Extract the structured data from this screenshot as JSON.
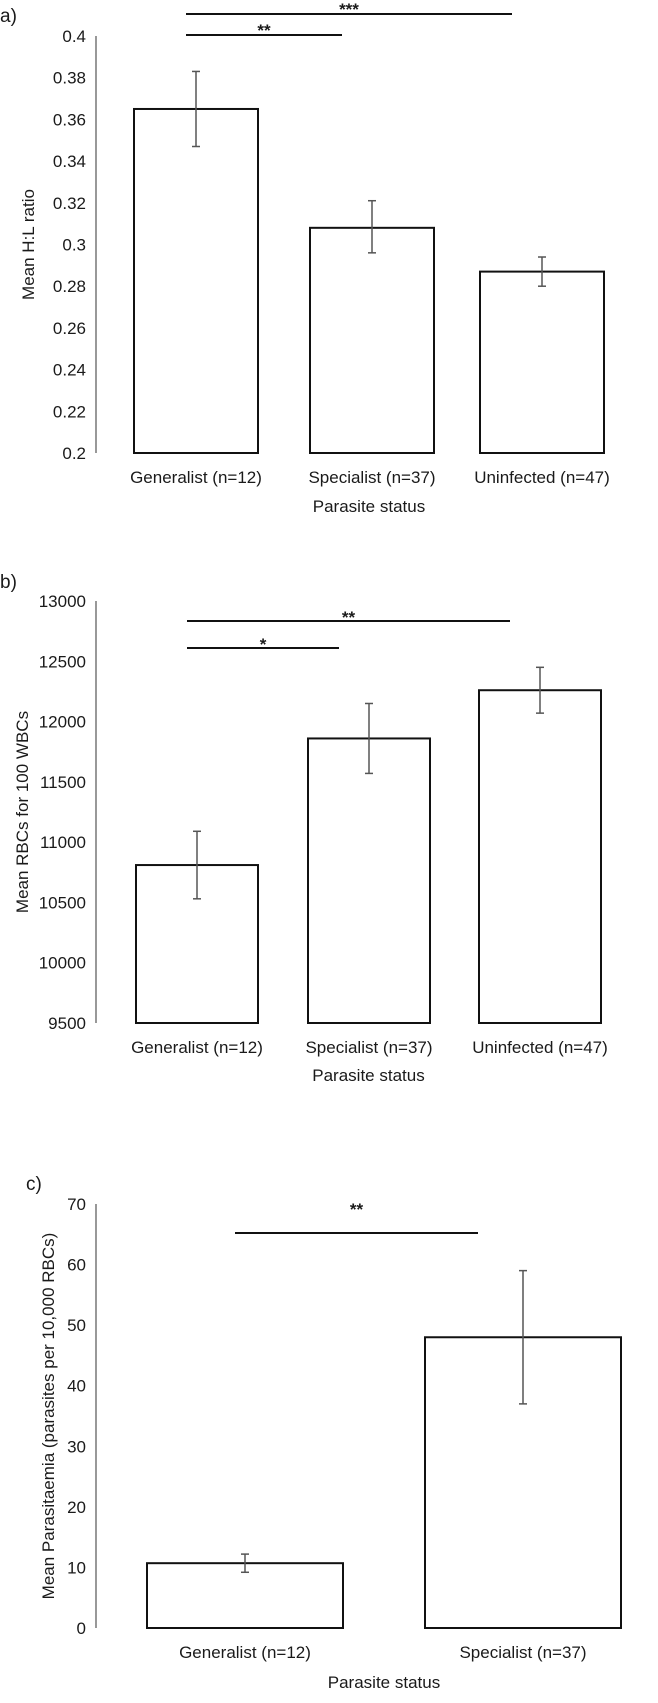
{
  "chart_data": [
    {
      "type": "bar",
      "panel_label": "a)",
      "categories": [
        "Generalist (n=12)",
        "Specialist (n=37)",
        "Uninfected (n=47)"
      ],
      "values": [
        0.365,
        0.308,
        0.287
      ],
      "error_low": [
        0.347,
        0.296,
        0.28
      ],
      "error_high": [
        0.383,
        0.321,
        0.294
      ],
      "xlabel": "Parasite status",
      "ylabel": "Mean H:L ratio",
      "ylim": [
        0.2,
        0.4
      ],
      "yticks": [
        "0.2",
        "0.22",
        "0.24",
        "0.26",
        "0.28",
        "0.3",
        "0.32",
        "0.34",
        "0.36",
        "0.38",
        "0.4"
      ],
      "significance": [
        {
          "from": 0,
          "to": 1,
          "label": "**"
        },
        {
          "from": 0,
          "to": 2,
          "label": "***"
        }
      ]
    },
    {
      "type": "bar",
      "panel_label": "b)",
      "categories": [
        "Generalist (n=12)",
        "Specialist (n=37)",
        "Uninfected (n=47)"
      ],
      "values": [
        10810,
        11860,
        12260
      ],
      "error_low": [
        10530,
        11570,
        12070
      ],
      "error_high": [
        11090,
        12150,
        12450
      ],
      "xlabel": "Parasite status",
      "ylabel": "Mean RBCs for 100 WBCs",
      "ylim": [
        9500,
        13000
      ],
      "yticks": [
        "9500",
        "10000",
        "10500",
        "11000",
        "11500",
        "12000",
        "12500",
        "13000"
      ],
      "significance": [
        {
          "from": 0,
          "to": 1,
          "label": "*"
        },
        {
          "from": 0,
          "to": 2,
          "label": "**"
        }
      ]
    },
    {
      "type": "bar",
      "panel_label": "c)",
      "categories": [
        "Generalist (n=12)",
        "Specialist (n=37)"
      ],
      "values": [
        10.7,
        48
      ],
      "error_low": [
        9.2,
        37
      ],
      "error_high": [
        12.2,
        59
      ],
      "xlabel": "Parasite status",
      "ylabel": "Mean Parasitaemia (parasites per 10,000 RBCs)",
      "ylim": [
        0,
        70
      ],
      "yticks": [
        "0",
        "10",
        "20",
        "30",
        "40",
        "50",
        "60",
        "70"
      ],
      "significance": [
        {
          "from": 0,
          "to": 1,
          "label": "**"
        }
      ]
    }
  ]
}
